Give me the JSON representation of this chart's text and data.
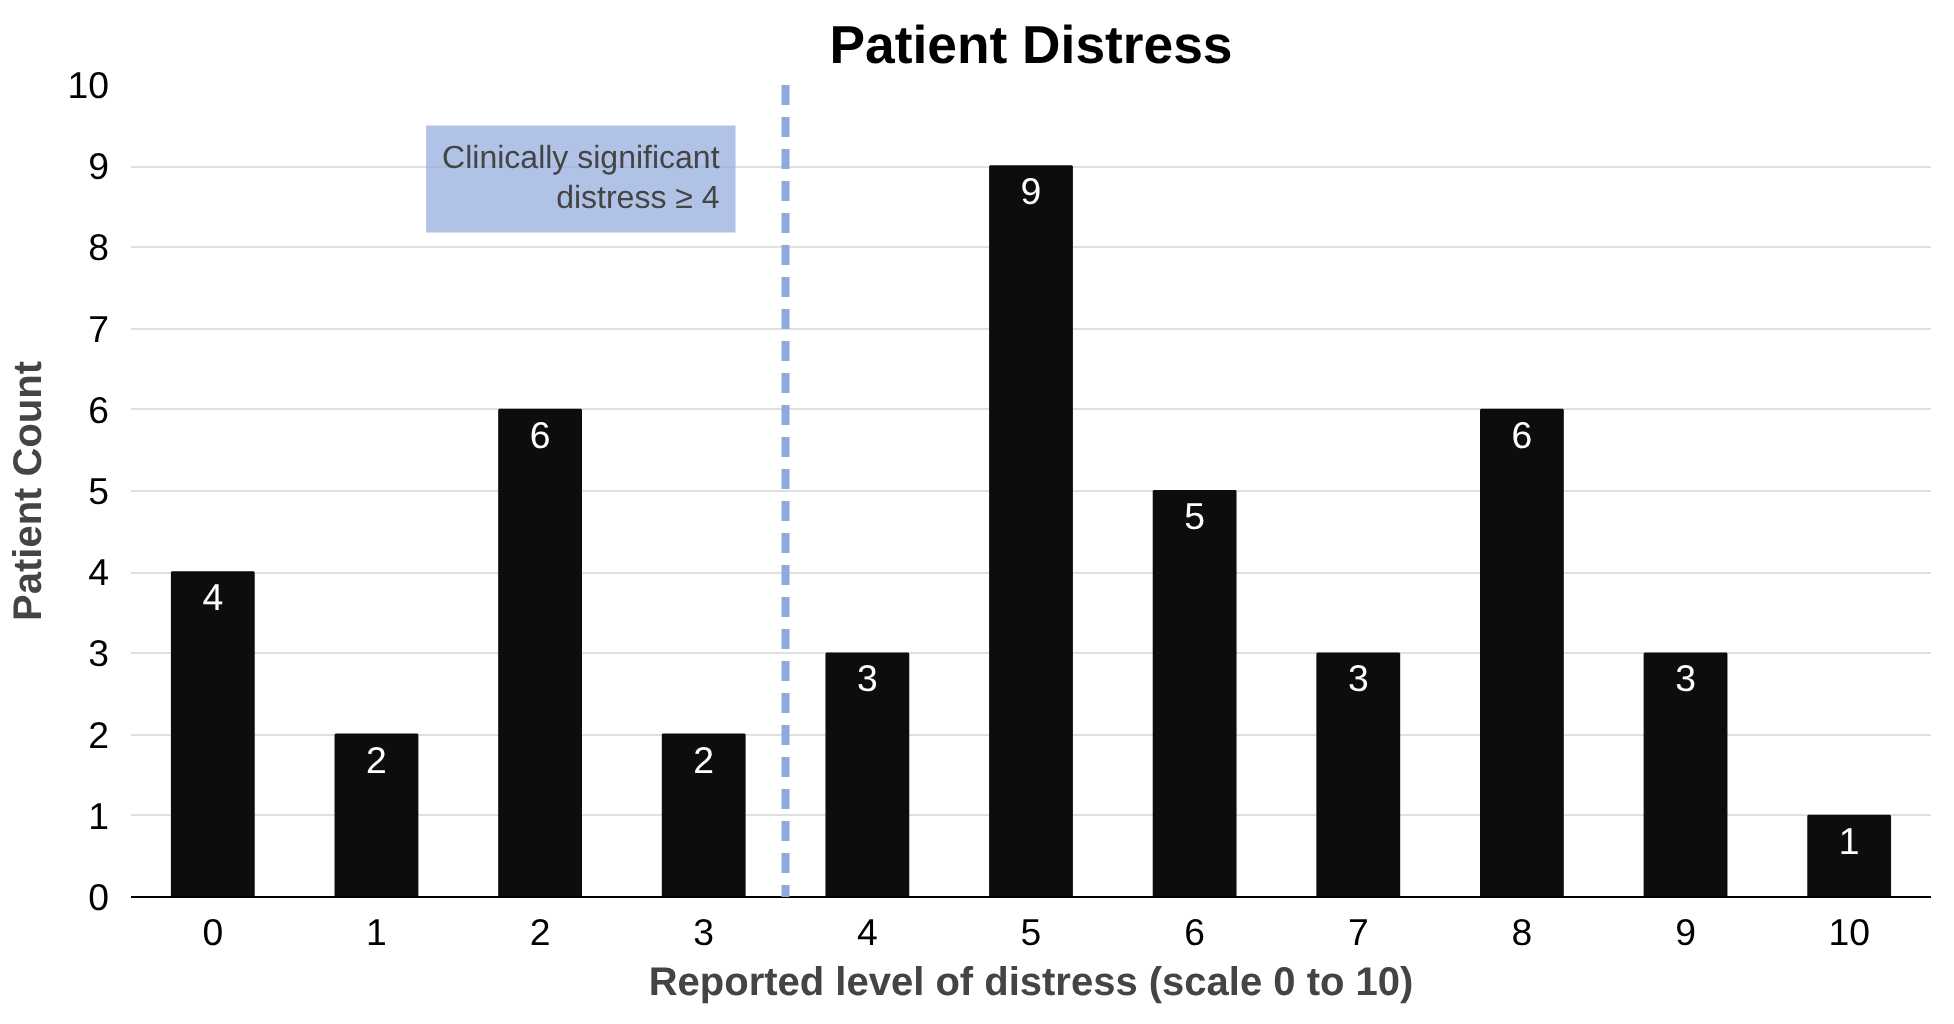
{
  "chart_data": {
    "type": "bar",
    "title": "Patient Distress",
    "xlabel": "Reported level of distress (scale 0 to 10)",
    "ylabel": "Patient Count",
    "categories": [
      "0",
      "1",
      "2",
      "3",
      "4",
      "5",
      "6",
      "7",
      "8",
      "9",
      "10"
    ],
    "values": [
      4,
      2,
      6,
      2,
      3,
      9,
      5,
      3,
      6,
      3,
      1
    ],
    "color": "#0d0d0d",
    "ylim": [
      0,
      10
    ],
    "yticks": [
      0,
      1,
      2,
      3,
      4,
      5,
      6,
      7,
      8,
      9,
      10
    ],
    "grid": "y",
    "data_labels": true,
    "ref_lines": [
      {
        "axis": "x",
        "value": "4",
        "label": "Clinically significant\ndistress ≥ 4",
        "color": "#8eaadc",
        "line_style": "dashed"
      }
    ]
  }
}
